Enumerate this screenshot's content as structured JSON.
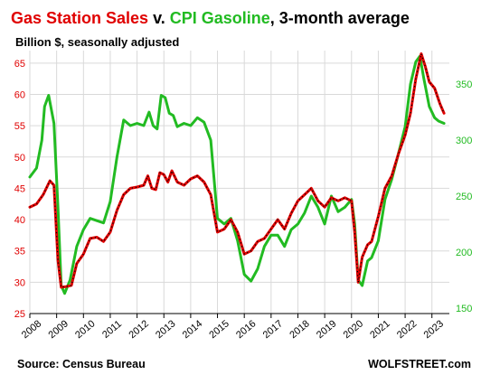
{
  "colors": {
    "sales": "#e00000",
    "cpi": "#22bb22",
    "ink": "#000000",
    "grid": "#d9d9d9"
  },
  "chart_data": {
    "type": "line",
    "title_parts": [
      "Gas Station Sales",
      " v. ",
      "CPI Gasoline",
      ",  3-month average"
    ],
    "subtitle": "Billion $, seasonally adjusted",
    "source": "Source: Census Bureau",
    "watermark": "WOLFSTREET.com",
    "grid": true,
    "x": {
      "ticks": [
        "2008",
        "2009",
        "2010",
        "2011",
        "2012",
        "2013",
        "2014",
        "2015",
        "2016",
        "2017",
        "2018",
        "2019",
        "2020",
        "2021",
        "2022",
        "2023"
      ],
      "range": [
        2008.0,
        2023.65
      ]
    },
    "y_left": {
      "ticks": [
        "25",
        "30",
        "35",
        "40",
        "45",
        "50",
        "55",
        "60",
        "65"
      ],
      "range": [
        25,
        67
      ]
    },
    "y_right": {
      "ticks": [
        "150",
        "200",
        "250",
        "300",
        "350"
      ],
      "range": [
        145,
        380
      ]
    },
    "series": [
      {
        "name": "Gas Station Sales",
        "axis": "left",
        "points": [
          [
            2008.0,
            42.0
          ],
          [
            2008.25,
            42.5
          ],
          [
            2008.5,
            44.0
          ],
          [
            2008.75,
            46.2
          ],
          [
            2008.9,
            45.5
          ],
          [
            2009.05,
            33.5
          ],
          [
            2009.17,
            29.2
          ],
          [
            2009.35,
            29.3
          ],
          [
            2009.55,
            29.5
          ],
          [
            2009.75,
            33.0
          ],
          [
            2010.0,
            34.5
          ],
          [
            2010.25,
            37.0
          ],
          [
            2010.5,
            37.2
          ],
          [
            2010.75,
            36.5
          ],
          [
            2011.0,
            38.0
          ],
          [
            2011.25,
            41.5
          ],
          [
            2011.5,
            44.0
          ],
          [
            2011.75,
            45.0
          ],
          [
            2012.0,
            45.2
          ],
          [
            2012.25,
            45.5
          ],
          [
            2012.4,
            47.0
          ],
          [
            2012.55,
            45.0
          ],
          [
            2012.7,
            44.8
          ],
          [
            2012.85,
            47.5
          ],
          [
            2013.0,
            47.2
          ],
          [
            2013.15,
            46.0
          ],
          [
            2013.3,
            47.8
          ],
          [
            2013.5,
            46.0
          ],
          [
            2013.75,
            45.5
          ],
          [
            2014.0,
            46.5
          ],
          [
            2014.25,
            47.0
          ],
          [
            2014.5,
            46.0
          ],
          [
            2014.75,
            44.0
          ],
          [
            2015.0,
            38.0
          ],
          [
            2015.25,
            38.5
          ],
          [
            2015.5,
            40.0
          ],
          [
            2015.75,
            38.0
          ],
          [
            2016.0,
            34.5
          ],
          [
            2016.25,
            35.0
          ],
          [
            2016.5,
            36.5
          ],
          [
            2016.75,
            37.0
          ],
          [
            2017.0,
            38.5
          ],
          [
            2017.25,
            40.0
          ],
          [
            2017.5,
            38.5
          ],
          [
            2017.75,
            41.0
          ],
          [
            2018.0,
            43.0
          ],
          [
            2018.25,
            44.0
          ],
          [
            2018.5,
            45.0
          ],
          [
            2018.75,
            43.0
          ],
          [
            2019.0,
            42.0
          ],
          [
            2019.25,
            43.5
          ],
          [
            2019.5,
            43.0
          ],
          [
            2019.75,
            43.5
          ],
          [
            2020.0,
            43.0
          ],
          [
            2020.12,
            38.0
          ],
          [
            2020.25,
            30.0
          ],
          [
            2020.4,
            34.0
          ],
          [
            2020.6,
            36.0
          ],
          [
            2020.75,
            36.5
          ],
          [
            2021.0,
            40.5
          ],
          [
            2021.25,
            45.0
          ],
          [
            2021.5,
            47.0
          ],
          [
            2021.75,
            50.5
          ],
          [
            2022.0,
            53.5
          ],
          [
            2022.2,
            57.0
          ],
          [
            2022.4,
            62.5
          ],
          [
            2022.6,
            66.5
          ],
          [
            2022.75,
            64.5
          ],
          [
            2022.9,
            62.0
          ],
          [
            2023.1,
            61.0
          ],
          [
            2023.3,
            58.5
          ],
          [
            2023.45,
            57.0
          ]
        ]
      },
      {
        "name": "CPI Gasoline",
        "axis": "right",
        "points": [
          [
            2008.0,
            267
          ],
          [
            2008.25,
            275
          ],
          [
            2008.45,
            300
          ],
          [
            2008.55,
            330
          ],
          [
            2008.7,
            340
          ],
          [
            2008.9,
            315
          ],
          [
            2009.05,
            240
          ],
          [
            2009.17,
            170
          ],
          [
            2009.3,
            163
          ],
          [
            2009.5,
            175
          ],
          [
            2009.75,
            205
          ],
          [
            2010.0,
            220
          ],
          [
            2010.25,
            230
          ],
          [
            2010.5,
            228
          ],
          [
            2010.75,
            226
          ],
          [
            2011.0,
            245
          ],
          [
            2011.25,
            285
          ],
          [
            2011.5,
            318
          ],
          [
            2011.75,
            313
          ],
          [
            2012.0,
            315
          ],
          [
            2012.25,
            313
          ],
          [
            2012.45,
            325
          ],
          [
            2012.6,
            313
          ],
          [
            2012.75,
            310
          ],
          [
            2012.9,
            340
          ],
          [
            2013.05,
            338
          ],
          [
            2013.2,
            324
          ],
          [
            2013.35,
            322
          ],
          [
            2013.5,
            312
          ],
          [
            2013.75,
            315
          ],
          [
            2014.0,
            313
          ],
          [
            2014.25,
            320
          ],
          [
            2014.5,
            316
          ],
          [
            2014.75,
            300
          ],
          [
            2015.0,
            230
          ],
          [
            2015.25,
            225
          ],
          [
            2015.5,
            230
          ],
          [
            2015.75,
            210
          ],
          [
            2016.0,
            180
          ],
          [
            2016.25,
            174
          ],
          [
            2016.5,
            185
          ],
          [
            2016.75,
            205
          ],
          [
            2017.0,
            215
          ],
          [
            2017.25,
            215
          ],
          [
            2017.5,
            205
          ],
          [
            2017.75,
            220
          ],
          [
            2018.0,
            225
          ],
          [
            2018.25,
            235
          ],
          [
            2018.5,
            250
          ],
          [
            2018.75,
            240
          ],
          [
            2019.0,
            225
          ],
          [
            2019.25,
            250
          ],
          [
            2019.5,
            236
          ],
          [
            2019.75,
            240
          ],
          [
            2020.0,
            247
          ],
          [
            2020.12,
            225
          ],
          [
            2020.25,
            175
          ],
          [
            2020.4,
            170
          ],
          [
            2020.6,
            192
          ],
          [
            2020.75,
            195
          ],
          [
            2021.0,
            210
          ],
          [
            2021.25,
            247
          ],
          [
            2021.5,
            265
          ],
          [
            2021.75,
            288
          ],
          [
            2022.0,
            312
          ],
          [
            2022.2,
            350
          ],
          [
            2022.4,
            370
          ],
          [
            2022.55,
            375
          ],
          [
            2022.7,
            355
          ],
          [
            2022.9,
            330
          ],
          [
            2023.1,
            320
          ],
          [
            2023.25,
            317
          ],
          [
            2023.45,
            315
          ]
        ]
      }
    ]
  }
}
